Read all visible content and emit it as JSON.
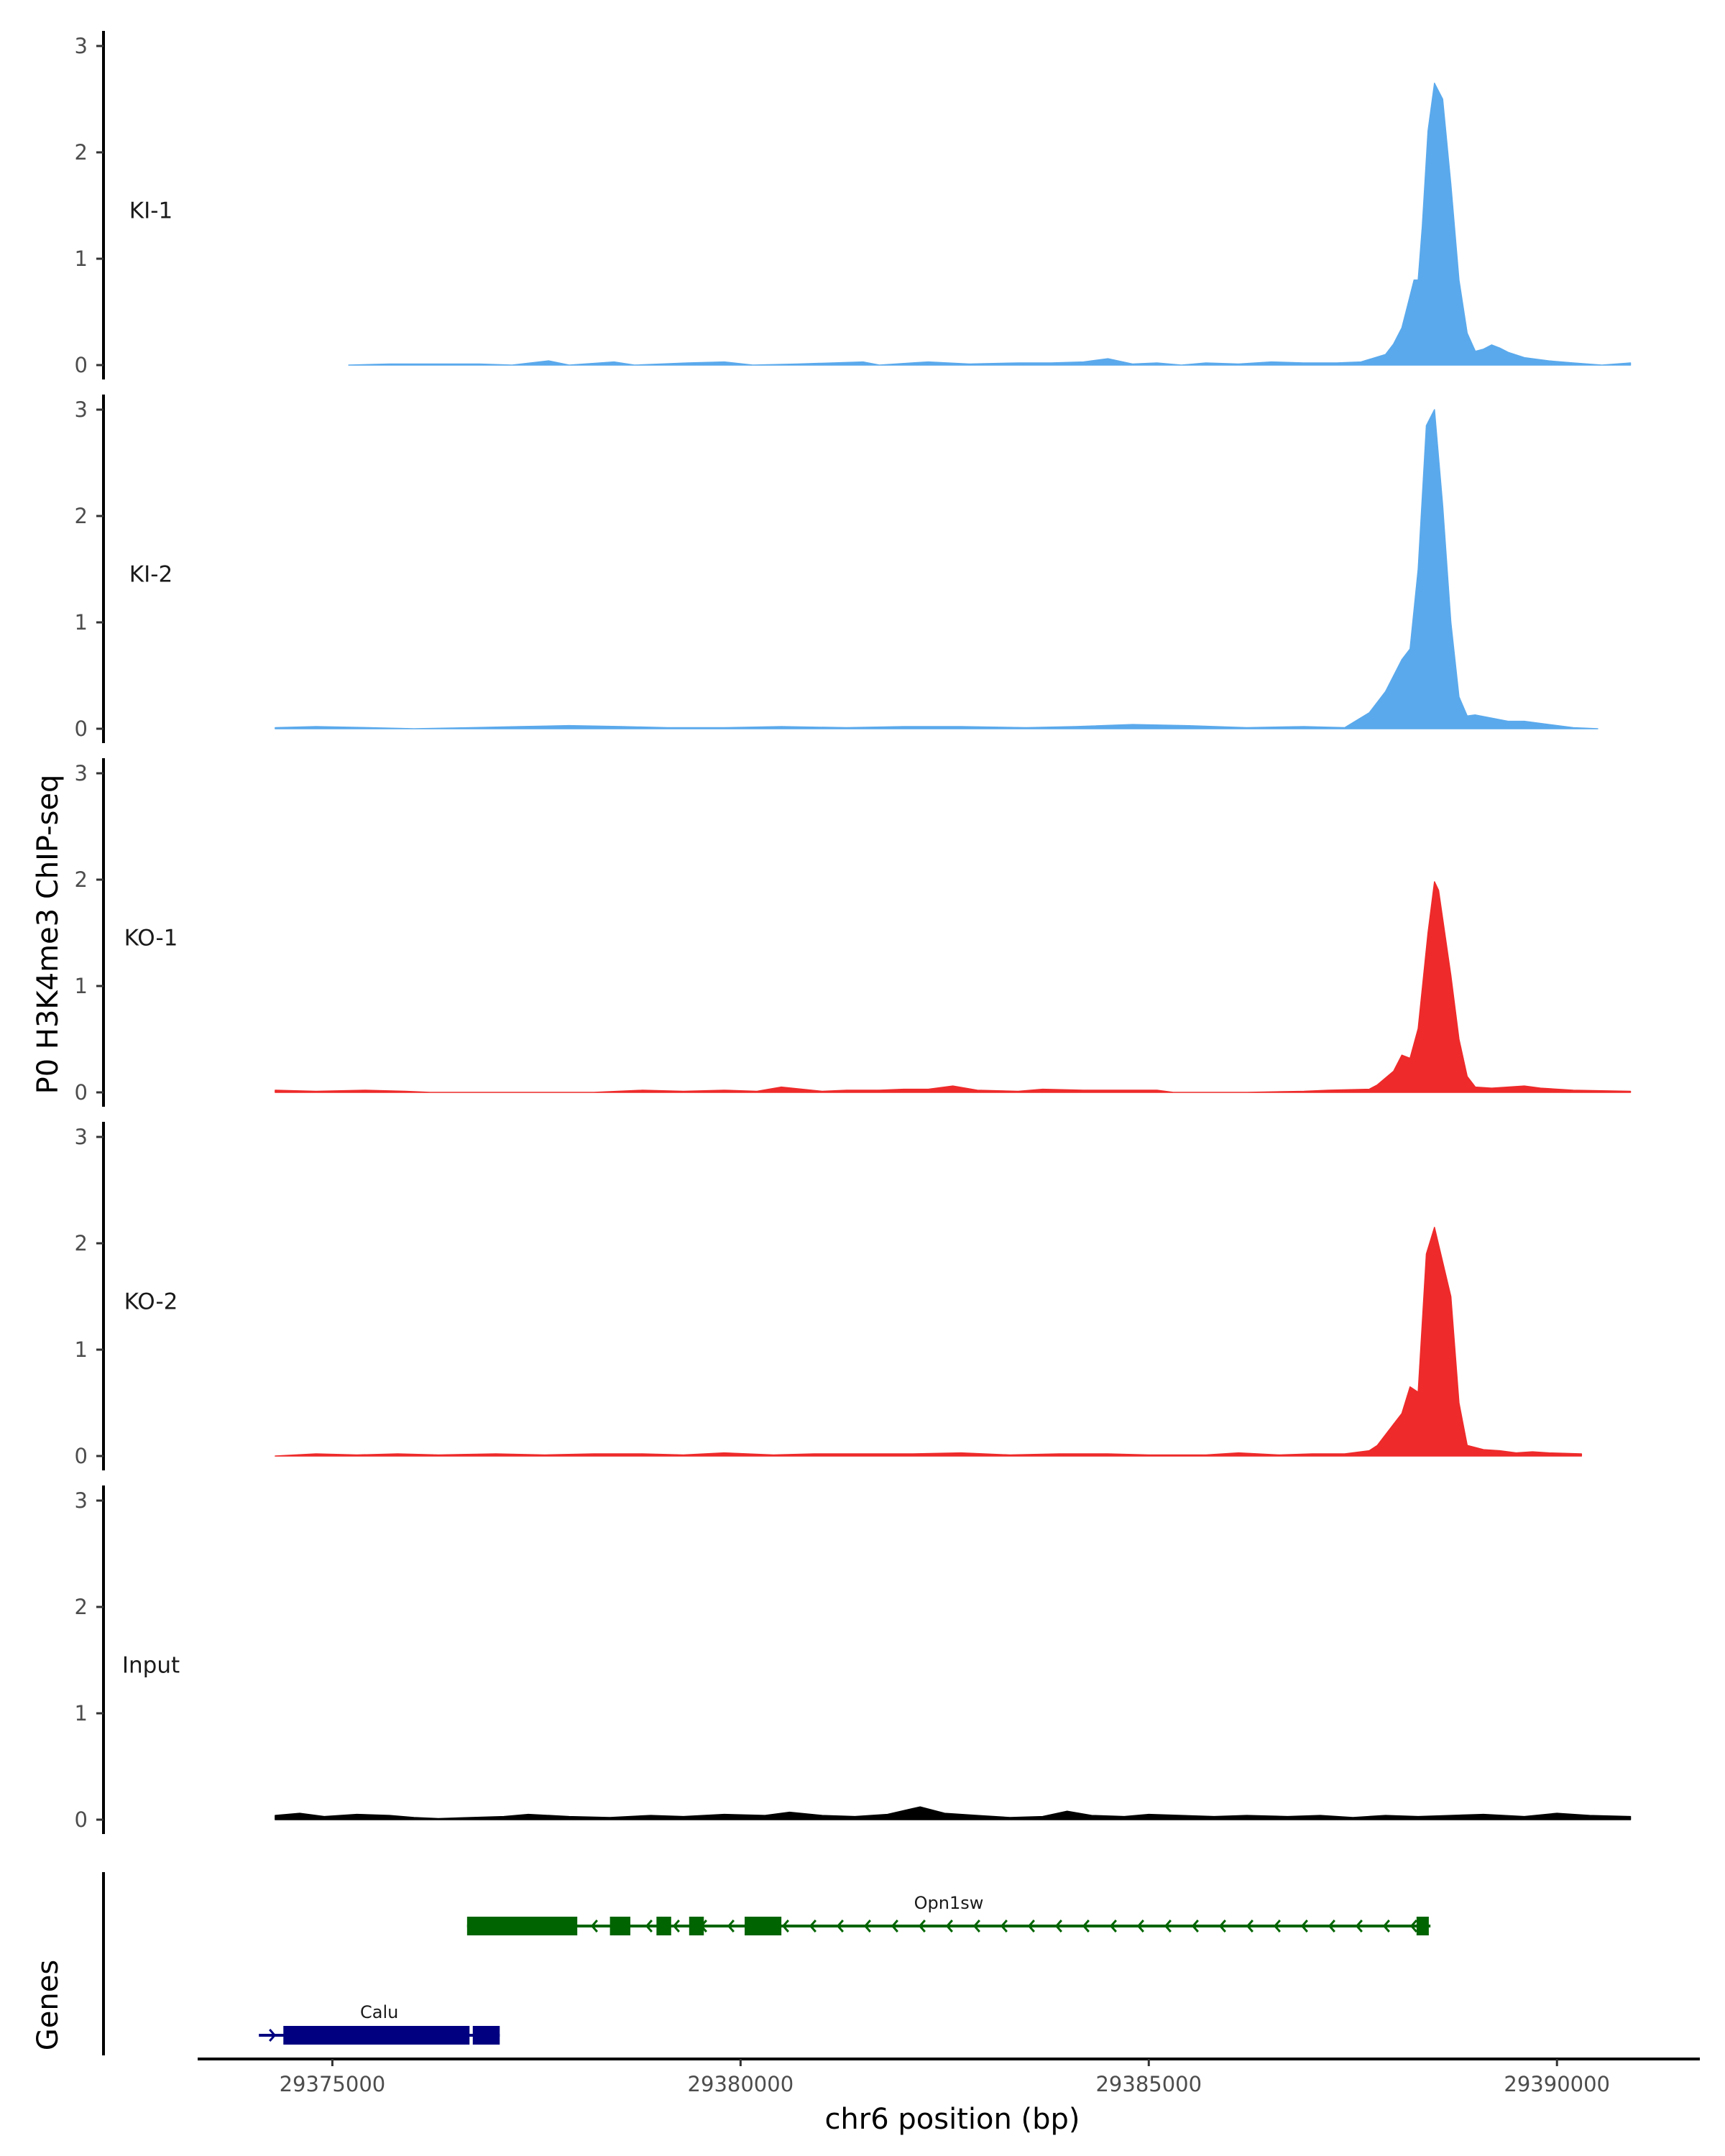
{
  "chart_data": {
    "type": "area",
    "ylabel": "P0 H3K4me3 ChIP-seq",
    "xlabel": "chr6 position (bp)",
    "gene_track_label": "Genes",
    "xlim": [
      29373350,
      29391750
    ],
    "ylim": [
      0,
      3.1
    ],
    "y_ticks": [
      0,
      1,
      2,
      3
    ],
    "x_ticks": [
      29375000,
      29380000,
      29385000,
      29390000
    ],
    "x_tick_labels": [
      "29375000",
      "29380000",
      "29385000",
      "29390000"
    ],
    "grid": false,
    "tracks": [
      {
        "name": "KI-1",
        "color": "#5AA9EC",
        "x": [
          29375200,
          29375700,
          29376250,
          29376800,
          29377200,
          29377650,
          29377900,
          29378450,
          29378700,
          29379350,
          29379800,
          29380150,
          29380700,
          29381500,
          29381700,
          29382100,
          29382300,
          29382800,
          29383400,
          29383800,
          29384200,
          29384500,
          29384800,
          29385100,
          29385400,
          29385700,
          29386100,
          29386500,
          29386900,
          29387300,
          29387600,
          29387900,
          29388000,
          29388100,
          29388150,
          29388250,
          29388300,
          29388350,
          29388420,
          29388500,
          29388600,
          29388700,
          29388800,
          29388900,
          29389000,
          29389100,
          29389200,
          29389300,
          29389400,
          29389600,
          29389900,
          29390200,
          29390550,
          29390900
        ],
        "values": [
          0,
          0.01,
          0.01,
          0.01,
          0,
          0.04,
          0,
          0.03,
          0,
          0.02,
          0.03,
          0,
          0.01,
          0.03,
          0,
          0.02,
          0.03,
          0.01,
          0.02,
          0.02,
          0.03,
          0.06,
          0.01,
          0.02,
          0,
          0.02,
          0.01,
          0.03,
          0.02,
          0.02,
          0.03,
          0.1,
          0.2,
          0.35,
          0.5,
          0.8,
          0.8,
          1.3,
          2.2,
          2.65,
          2.5,
          1.7,
          0.8,
          0.3,
          0.13,
          0.15,
          0.19,
          0.16,
          0.12,
          0.07,
          0.04,
          0.02,
          0,
          0.02
        ]
      },
      {
        "name": "KI-2",
        "color": "#5AA9EC",
        "x": [
          29374300,
          29374800,
          29375450,
          29376000,
          29376700,
          29377300,
          29377900,
          29378550,
          29379100,
          29379800,
          29380500,
          29381300,
          29382000,
          29382700,
          29383500,
          29384100,
          29384800,
          29385450,
          29386200,
          29386900,
          29387400,
          29387700,
          29387900,
          29388100,
          29388200,
          29388300,
          29388400,
          29388500,
          29388600,
          29388700,
          29388800,
          29388900,
          29389000,
          29389200,
          29389400,
          29389600,
          29389900,
          29390200,
          29390500
        ],
        "values": [
          0.01,
          0.02,
          0.01,
          0,
          0.01,
          0.02,
          0.03,
          0.02,
          0.01,
          0.01,
          0.02,
          0.01,
          0.02,
          0.02,
          0.01,
          0.02,
          0.04,
          0.03,
          0.01,
          0.02,
          0.01,
          0.15,
          0.35,
          0.65,
          0.75,
          1.5,
          2.85,
          3.0,
          2.1,
          1.0,
          0.3,
          0.12,
          0.13,
          0.1,
          0.07,
          0.07,
          0.04,
          0.01,
          0
        ]
      },
      {
        "name": "KO-1",
        "color": "#EE2A2A",
        "x": [
          29374300,
          29374800,
          29375400,
          29375900,
          29376200,
          29378200,
          29378800,
          29379300,
          29379800,
          29380200,
          29380500,
          29381000,
          29381300,
          29381700,
          29382000,
          29382300,
          29382600,
          29382900,
          29383400,
          29383700,
          29384200,
          29384600,
          29385100,
          29385300,
          29386200,
          29386900,
          29387200,
          29387700,
          29387800,
          29388000,
          29388100,
          29388200,
          29388300,
          29388420,
          29388500,
          29388550,
          29388700,
          29388800,
          29388900,
          29389000,
          29389200,
          29389400,
          29389600,
          29389800,
          29390200,
          29390900
        ],
        "values": [
          0.02,
          0.01,
          0.02,
          0.01,
          0,
          0,
          0.02,
          0.01,
          0.02,
          0.01,
          0.05,
          0.01,
          0.02,
          0.02,
          0.03,
          0.03,
          0.06,
          0.02,
          0.01,
          0.03,
          0.02,
          0.02,
          0.02,
          0,
          0,
          0.01,
          0.02,
          0.03,
          0.07,
          0.2,
          0.35,
          0.32,
          0.6,
          1.5,
          1.98,
          1.9,
          1.1,
          0.5,
          0.15,
          0.05,
          0.04,
          0.05,
          0.06,
          0.04,
          0.02,
          0.01
        ]
      },
      {
        "name": "KO-2",
        "color": "#EE2A2A",
        "x": [
          29374300,
          29374800,
          29375300,
          29375800,
          29376300,
          29377000,
          29377600,
          29378200,
          29378800,
          29379300,
          29379800,
          29380400,
          29380900,
          29381500,
          29382100,
          29382700,
          29383300,
          29383900,
          29384500,
          29385000,
          29385700,
          29386100,
          29386600,
          29387000,
          29387400,
          29387700,
          29387800,
          29388000,
          29388100,
          29388200,
          29388300,
          29388400,
          29388500,
          29388700,
          29388800,
          29388900,
          29389100,
          29389300,
          29389500,
          29389700,
          29389900,
          29390300
        ],
        "values": [
          0,
          0.02,
          0.01,
          0.02,
          0.01,
          0.02,
          0.01,
          0.02,
          0.02,
          0.01,
          0.03,
          0.01,
          0.02,
          0.02,
          0.02,
          0.03,
          0.01,
          0.02,
          0.02,
          0.01,
          0.01,
          0.03,
          0.01,
          0.02,
          0.02,
          0.05,
          0.1,
          0.3,
          0.4,
          0.65,
          0.6,
          1.9,
          2.15,
          1.5,
          0.5,
          0.1,
          0.06,
          0.05,
          0.03,
          0.04,
          0.03,
          0.02
        ]
      },
      {
        "name": "Input",
        "color": "#000000",
        "x": [
          29374300,
          29374600,
          29374900,
          29375300,
          29375700,
          29376000,
          29376300,
          29376700,
          29377100,
          29377400,
          29377900,
          29378400,
          29378900,
          29379300,
          29379800,
          29380300,
          29380600,
          29381000,
          29381400,
          29381800,
          29382200,
          29382500,
          29382900,
          29383300,
          29383700,
          29384000,
          29384300,
          29384700,
          29385000,
          29385400,
          29385800,
          29386200,
          29386700,
          29387100,
          29387500,
          29387900,
          29388300,
          29388700,
          29389100,
          29389600,
          29390000,
          29390400,
          29390900
        ],
        "values": [
          0.04,
          0.06,
          0.03,
          0.05,
          0.04,
          0.02,
          0.01,
          0.02,
          0.03,
          0.05,
          0.03,
          0.02,
          0.04,
          0.03,
          0.05,
          0.04,
          0.07,
          0.04,
          0.03,
          0.05,
          0.12,
          0.06,
          0.04,
          0.02,
          0.03,
          0.08,
          0.04,
          0.03,
          0.05,
          0.04,
          0.03,
          0.04,
          0.03,
          0.04,
          0.02,
          0.04,
          0.03,
          0.04,
          0.05,
          0.03,
          0.06,
          0.04,
          0.03
        ]
      }
    ],
    "genes": [
      {
        "name": "Opn1sw",
        "color": "#006400",
        "start": 29376650,
        "end": 29388450,
        "strand": "-",
        "row": 0,
        "exons": [
          [
            29376650,
            29378000
          ],
          [
            29378400,
            29378650
          ],
          [
            29378970,
            29379150
          ],
          [
            29379370,
            29379550
          ],
          [
            29380050,
            29380500
          ],
          [
            29388280,
            29388430
          ]
        ]
      },
      {
        "name": "Calu",
        "color": "#000080",
        "start": 29374100,
        "end": 29377050,
        "strand": "+",
        "row": 1,
        "exons": [
          [
            29374400,
            29376680
          ],
          [
            29376720,
            29377050
          ]
        ]
      }
    ]
  }
}
